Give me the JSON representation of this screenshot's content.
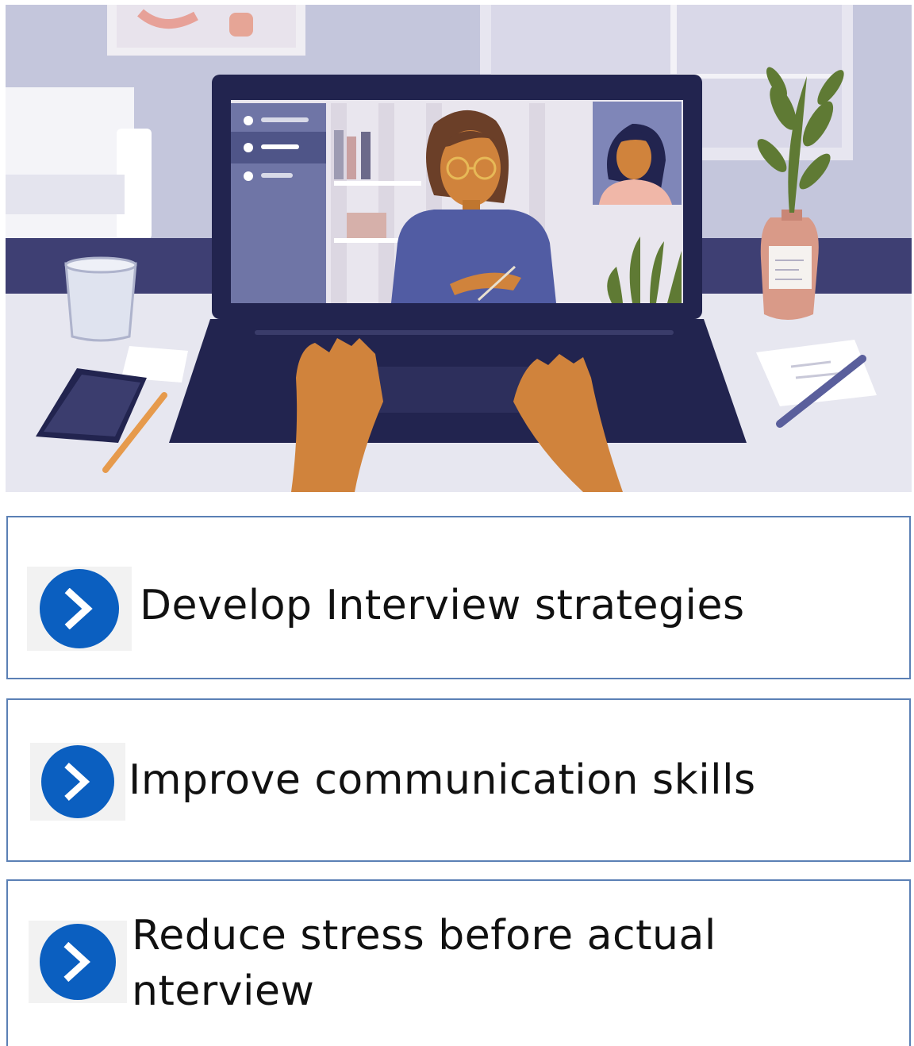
{
  "illustration": {
    "subject": "video-call-interview",
    "colors": {
      "wall": "#c4c6dc",
      "desk": "#e7e7f0",
      "stripe": "#3e3f73",
      "laptop": "#22244f",
      "screen_bg": "#e9e6ee",
      "screen_panel": "#6f75a6",
      "skin": "#d0833c",
      "shirt": "#515ca3",
      "plant": "#5f7a34",
      "vase": "#d99a88"
    }
  },
  "bullets": [
    {
      "text": "Develop Interview strategies",
      "icon": "chevron-right-icon"
    },
    {
      "text": "Improve communication skills",
      "icon": "chevron-right-icon"
    },
    {
      "text": "Reduce stress before actual nterview",
      "icon": "chevron-right-icon"
    }
  ],
  "colors": {
    "accent": "#0b5fc0",
    "box_border": "#5b80b5",
    "text": "#111111"
  }
}
